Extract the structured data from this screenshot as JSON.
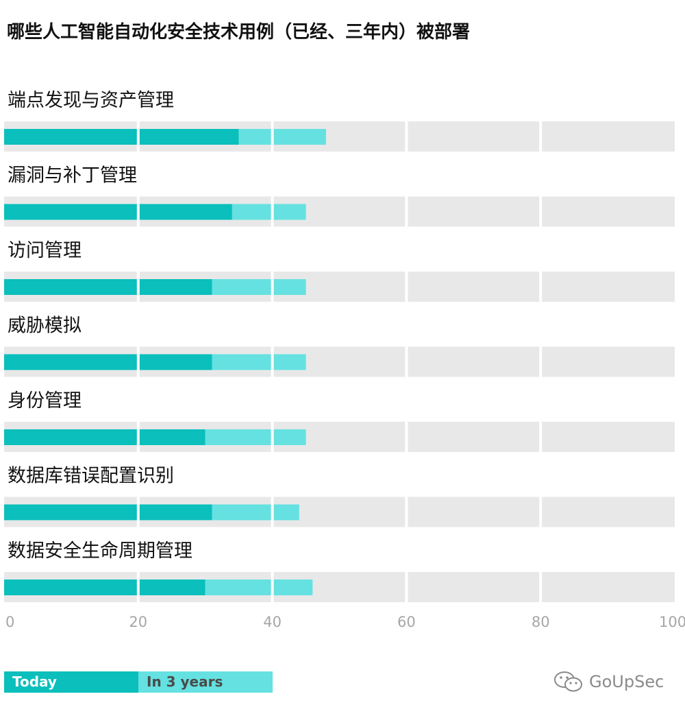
{
  "title": "哪些人工智能自动化安全技术用例（已经、三年内）被部署",
  "colors": {
    "today": "#0ABFBC",
    "in_3_years": "#64E1E0",
    "track": "#E8E8E8",
    "gridline": "#FFFFFF"
  },
  "chart_data": {
    "type": "bar",
    "orientation": "horizontal",
    "stacked": true,
    "categories": [
      "端点发现与资产管理",
      "漏洞与补丁管理",
      "访问管理",
      "威胁模拟",
      "身份管理",
      "数据库错误配置识别",
      "数据安全生命周期管理"
    ],
    "series": [
      {
        "name": "Today",
        "values": [
          35,
          34,
          31,
          31,
          30,
          31,
          30
        ]
      },
      {
        "name": "In 3 years",
        "values": [
          13,
          11,
          14,
          14,
          15,
          13,
          16
        ]
      }
    ],
    "xlim": [
      0,
      100
    ],
    "xticks": [
      "0",
      "20",
      "40",
      "60",
      "80",
      "100"
    ],
    "grid": true,
    "legend_position": "bottom-left"
  },
  "legend": {
    "today": "Today",
    "future": "In 3 years"
  },
  "watermark": {
    "text": "GoUpSec",
    "icon": "wechat-icon"
  }
}
